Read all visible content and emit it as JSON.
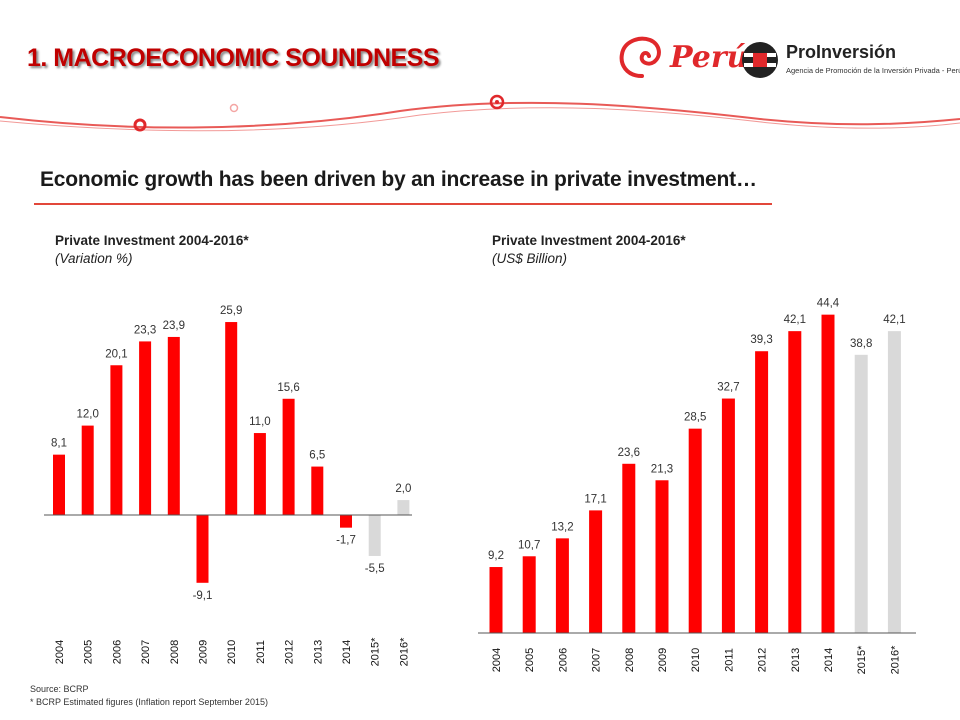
{
  "header": {
    "title": "1. MACROECONOMIC SOUNDNESS",
    "peru_logo_text": "Perú",
    "proinversion_name": "ProInversión",
    "proinversion_tagline": "Agencia de Promoción de la Inversión Privada - Perú"
  },
  "subtitle": "Economic growth has been driven by an increase in private investment…",
  "colors": {
    "actual": "#ff0000",
    "estimated": "#d9d9d9",
    "accent": "#c00000"
  },
  "chart_data": [
    {
      "type": "bar",
      "title": "Private Investment 2004-2016*",
      "subtitle": "(Variation %)",
      "categories": [
        "2004",
        "2005",
        "2006",
        "2007",
        "2008",
        "2009",
        "2010",
        "2011",
        "2012",
        "2013",
        "2014",
        "2015*",
        "2016*"
      ],
      "values": [
        8.1,
        12.0,
        20.1,
        23.3,
        23.9,
        -9.1,
        25.9,
        11.0,
        15.6,
        6.5,
        -1.7,
        -5.5,
        2.0
      ],
      "labels": [
        "8,1",
        "12,0",
        "20,1",
        "23,3",
        "23,9",
        "-9,1",
        "25,9",
        "11,0",
        "15,6",
        "6,5",
        "-1,7",
        "-5,5",
        "2,0"
      ],
      "estimated": [
        false,
        false,
        false,
        false,
        false,
        false,
        false,
        false,
        false,
        false,
        false,
        true,
        true
      ],
      "grid": false,
      "legend": "none"
    },
    {
      "type": "bar",
      "title": "Private Investment 2004-2016*",
      "subtitle": "(US$ Billion)",
      "categories": [
        "2004",
        "2005",
        "2006",
        "2007",
        "2008",
        "2009",
        "2010",
        "2011",
        "2012",
        "2013",
        "2014",
        "2015*",
        "2016*"
      ],
      "values": [
        9.2,
        10.7,
        13.2,
        17.1,
        23.6,
        21.3,
        28.5,
        32.7,
        39.3,
        42.1,
        44.4,
        38.8,
        42.1
      ],
      "labels": [
        "9,2",
        "10,7",
        "13,2",
        "17,1",
        "23,6",
        "21,3",
        "28,5",
        "32,7",
        "39,3",
        "42,1",
        "44,4",
        "38,8",
        "42,1"
      ],
      "estimated": [
        false,
        false,
        false,
        false,
        false,
        false,
        false,
        false,
        false,
        false,
        false,
        true,
        true
      ],
      "grid": false,
      "legend": "none"
    }
  ],
  "footer": {
    "source": "Source: BCRP",
    "note": "*  BCRP  Estimated figures (Inflation report September 2015)"
  }
}
